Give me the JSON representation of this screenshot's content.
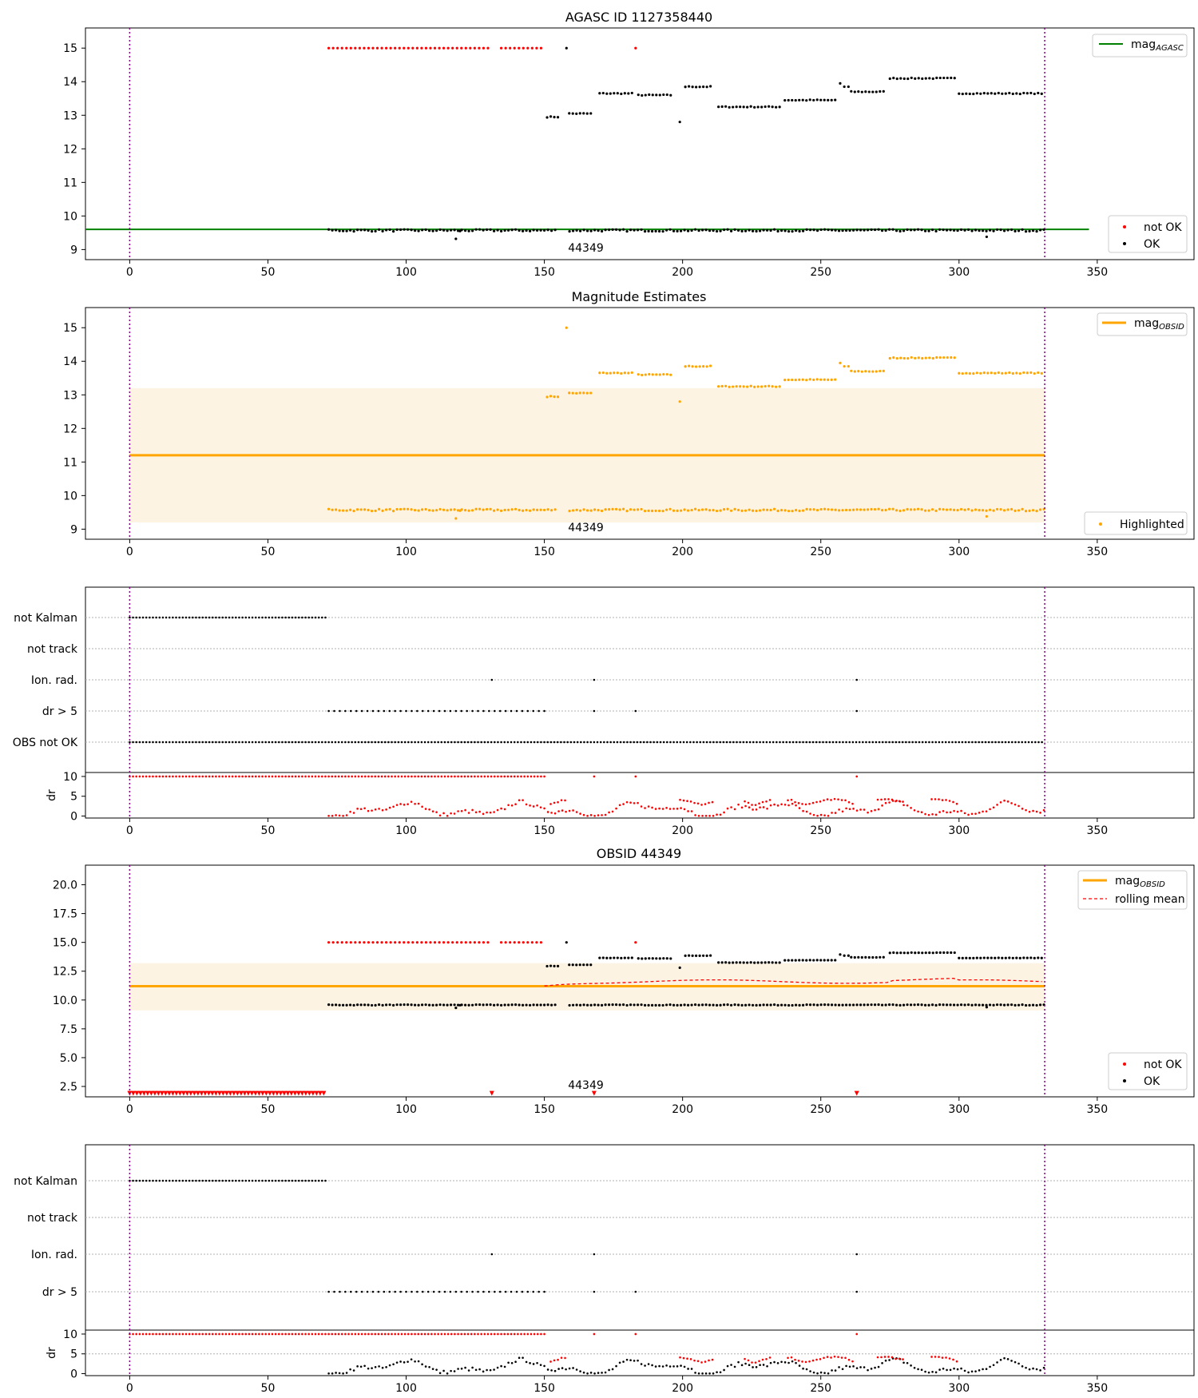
{
  "figure": {
    "xticks": [
      0,
      50,
      100,
      150,
      200,
      250,
      300,
      350
    ],
    "xlim": [
      -16,
      385
    ],
    "obs_label": "44349",
    "obs_range": [
      0,
      331
    ],
    "colors": {
      "orange": "#ffa500",
      "band": "#fdf3e3",
      "red": "#ff0000",
      "green": "#008000",
      "purple": "#800080",
      "black": "#000000",
      "grid": "#b0b0b0"
    }
  },
  "chart_data": [
    {
      "type": "scatter",
      "title": "AGASC ID 1127358440",
      "ylim": [
        8.7,
        15.6
      ],
      "yticks": [
        9,
        10,
        11,
        12,
        13,
        14,
        15
      ],
      "mag_agasc": 9.6,
      "legend_line": {
        "base": "mag",
        "sub": "AGASC"
      },
      "legend_points": [
        "not OK",
        "OK"
      ],
      "annotation": "44349"
    },
    {
      "type": "scatter",
      "title": "Magnitude Estimates",
      "ylim": [
        8.7,
        15.6
      ],
      "yticks": [
        9,
        10,
        11,
        12,
        13,
        14,
        15
      ],
      "mag_obsid": 11.2,
      "band": [
        9.2,
        13.2
      ],
      "legend_line": {
        "base": "mag",
        "sub": "OBSID"
      },
      "legend_points": [
        "Highlighted"
      ],
      "annotation": "44349"
    },
    {
      "type": "scatter",
      "title": "",
      "flag_labels": [
        "not Kalman",
        "not track",
        "Ion. rad.",
        "dr > 5",
        "OBS not OK"
      ],
      "dr_label": "dr",
      "dr_yticks": [
        0,
        5,
        10
      ],
      "dr_ylim": [
        -0.5,
        11
      ]
    },
    {
      "type": "scatter",
      "title": "OBSID 44349",
      "ylim": [
        1.6,
        21.7
      ],
      "yticks": [
        2.5,
        5.0,
        7.5,
        10.0,
        12.5,
        15.0,
        17.5,
        20.0
      ],
      "mag_obsid": 11.2,
      "band": [
        9.1,
        13.2
      ],
      "legend_line": {
        "base": "mag",
        "sub": "OBSID"
      },
      "legend_dash": "rolling mean",
      "legend_points": [
        "not OK",
        "OK"
      ],
      "annotation": "44349"
    },
    {
      "type": "scatter",
      "title": "",
      "flag_labels": [
        "not Kalman",
        "not track",
        "Ion. rad.",
        "dr > 5"
      ],
      "dr_label": "dr",
      "dr_yticks": [
        0,
        5,
        10
      ],
      "dr_ylim": [
        -0.5,
        11
      ]
    }
  ]
}
